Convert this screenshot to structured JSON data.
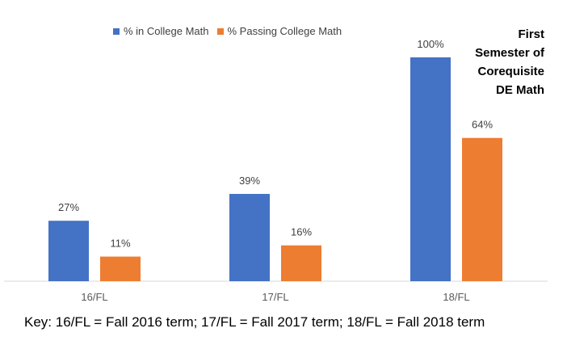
{
  "legend": {
    "series1": "% in College Math",
    "series2": "% Passing College Math"
  },
  "side_title": [
    "First",
    "Semester of",
    "Corequisite",
    "DE Math"
  ],
  "key_note": "Key: 16/FL = Fall 2016 term; 17/FL = Fall 2017 term; 18/FL = Fall 2018 term",
  "colors": {
    "series1": "#4472C4",
    "series2": "#ED7D31",
    "axis": "#D9D9D9"
  },
  "chart_data": {
    "type": "bar",
    "categories": [
      "16/FL",
      "17/FL",
      "18/FL"
    ],
    "series": [
      {
        "name": "% in College Math",
        "values": [
          27,
          39,
          100
        ],
        "labels": [
          "27%",
          "39%",
          "100%"
        ]
      },
      {
        "name": "% Passing College Math",
        "values": [
          11,
          16,
          64
        ],
        "labels": [
          "11%",
          "16%",
          "64%"
        ]
      }
    ],
    "title": "",
    "xlabel": "",
    "ylabel": "",
    "ylim": [
      0,
      100
    ],
    "grid": false,
    "legend_position": "top"
  }
}
